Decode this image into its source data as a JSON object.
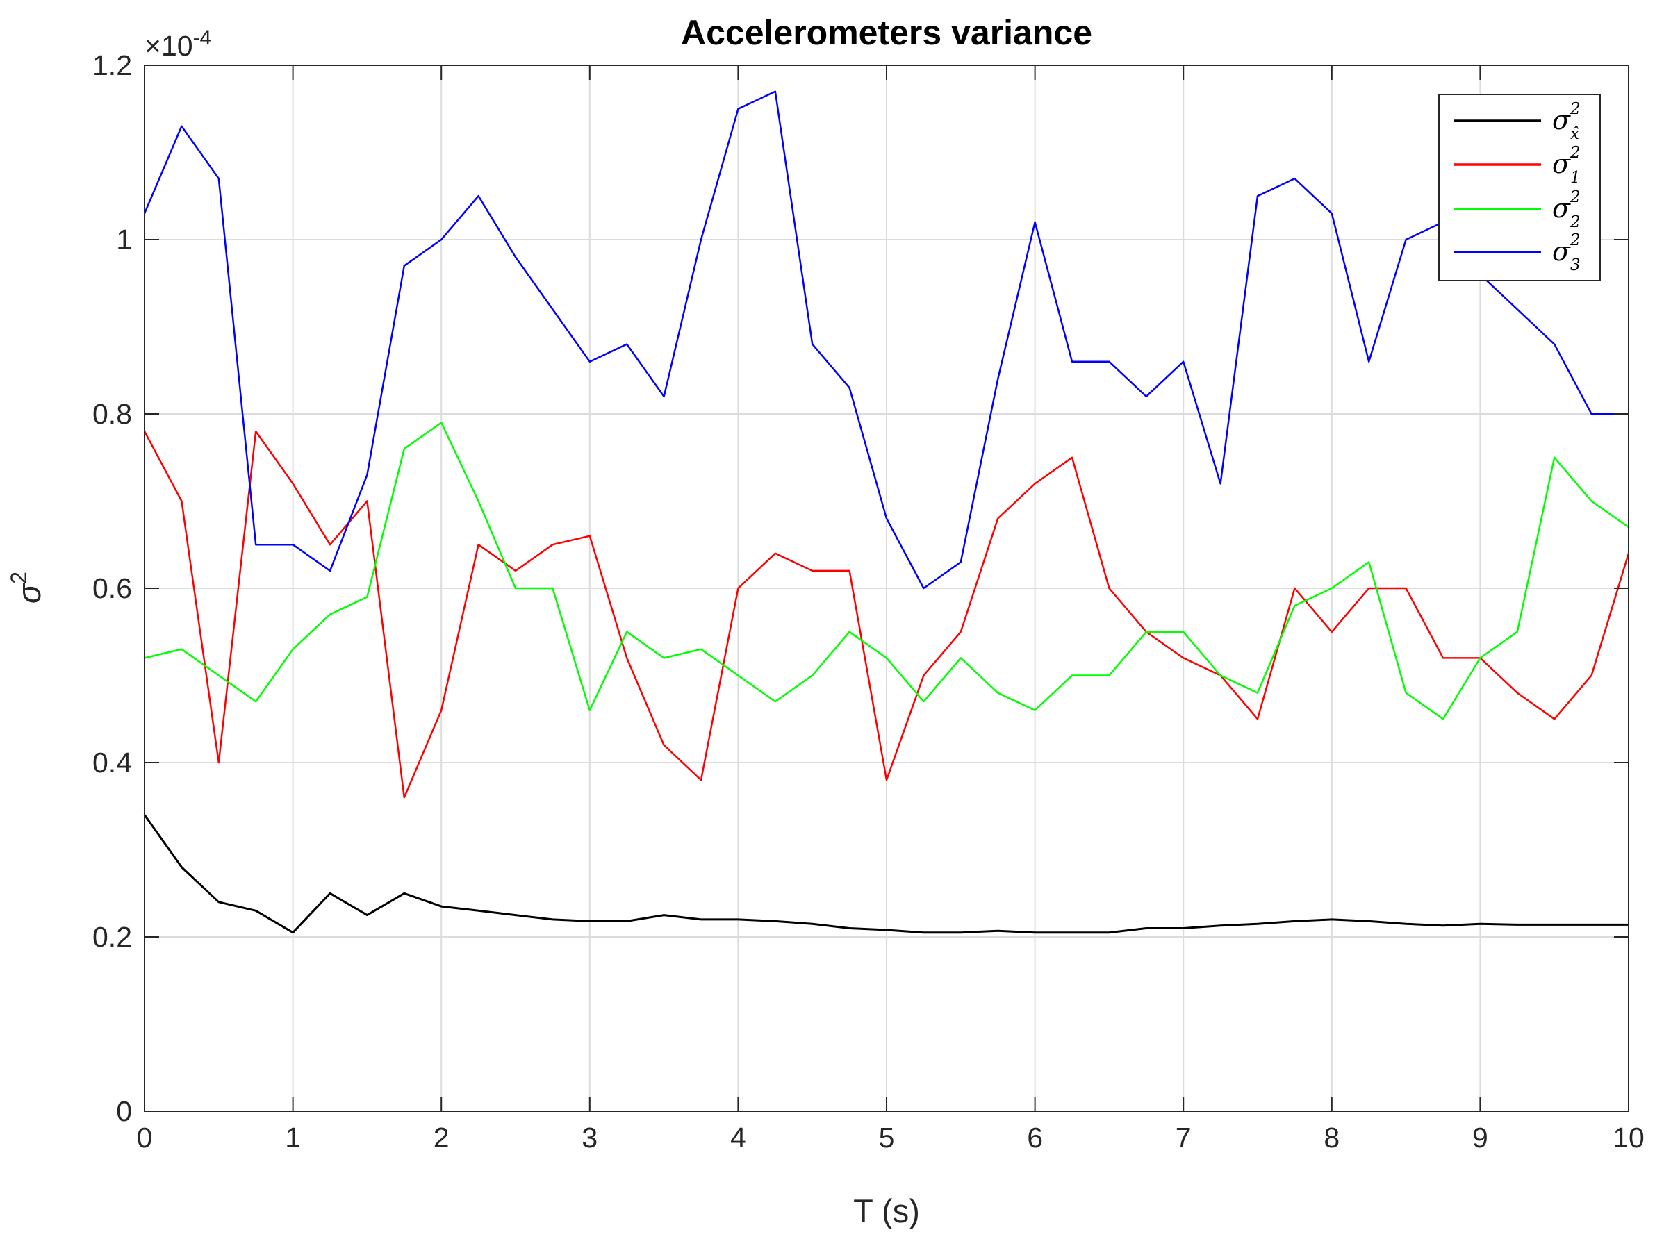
{
  "chart_data": {
    "type": "line",
    "title": "Accelerometers variance",
    "xlabel": "T (s)",
    "ylabel_symbol": "σ",
    "ylabel_superscript": "2",
    "y_exponent_prefix": "×10",
    "y_exponent": "-4",
    "xlim": [
      0,
      10
    ],
    "ylim": [
      0,
      1.2
    ],
    "xticks": [
      0,
      1,
      2,
      3,
      4,
      5,
      6,
      7,
      8,
      9,
      10
    ],
    "xtick_labels": [
      "0",
      "1",
      "2",
      "3",
      "4",
      "5",
      "6",
      "7",
      "8",
      "9",
      "10"
    ],
    "yticks": [
      0,
      0.2,
      0.4,
      0.6,
      0.8,
      1.0,
      1.2
    ],
    "ytick_labels": [
      "0",
      "0.2",
      "0.4",
      "0.6",
      "0.8",
      "1",
      "1.2"
    ],
    "grid": true,
    "legend_position": "top-right",
    "x": [
      0,
      0.25,
      0.5,
      0.75,
      1.0,
      1.25,
      1.5,
      1.75,
      2.0,
      2.25,
      2.5,
      2.75,
      3.0,
      3.25,
      3.5,
      3.75,
      4.0,
      4.25,
      4.5,
      4.75,
      5.0,
      5.25,
      5.5,
      5.75,
      6.0,
      6.25,
      6.5,
      6.75,
      7.0,
      7.25,
      7.5,
      7.75,
      8.0,
      8.25,
      8.5,
      8.75,
      9.0,
      9.25,
      9.5,
      9.75,
      10.0
    ],
    "series": [
      {
        "name_base": "σ",
        "name_sup": "2",
        "name_sub": "x̂",
        "color": "#000000",
        "values": [
          0.34,
          0.28,
          0.24,
          0.23,
          0.205,
          0.25,
          0.225,
          0.25,
          0.235,
          0.23,
          0.225,
          0.22,
          0.218,
          0.218,
          0.225,
          0.22,
          0.22,
          0.218,
          0.215,
          0.21,
          0.208,
          0.205,
          0.205,
          0.207,
          0.205,
          0.205,
          0.205,
          0.21,
          0.21,
          0.213,
          0.215,
          0.218,
          0.22,
          0.218,
          0.215,
          0.213,
          0.215,
          0.214,
          0.214,
          0.214,
          0.214
        ]
      },
      {
        "name_base": "σ",
        "name_sup": "2",
        "name_sub": "1",
        "color": "#ff0000",
        "values": [
          0.78,
          0.7,
          0.4,
          0.78,
          0.72,
          0.65,
          0.7,
          0.36,
          0.46,
          0.65,
          0.62,
          0.65,
          0.66,
          0.52,
          0.42,
          0.38,
          0.6,
          0.64,
          0.62,
          0.62,
          0.38,
          0.5,
          0.55,
          0.68,
          0.72,
          0.75,
          0.6,
          0.55,
          0.52,
          0.5,
          0.45,
          0.6,
          0.55,
          0.6,
          0.6,
          0.52,
          0.52,
          0.48,
          0.45,
          0.5,
          0.64
        ]
      },
      {
        "name_base": "σ",
        "name_sup": "2",
        "name_sub": "2",
        "color": "#00ff00",
        "values": [
          0.52,
          0.53,
          0.5,
          0.47,
          0.53,
          0.57,
          0.59,
          0.76,
          0.79,
          0.7,
          0.6,
          0.6,
          0.46,
          0.55,
          0.52,
          0.53,
          0.5,
          0.47,
          0.5,
          0.55,
          0.52,
          0.47,
          0.52,
          0.48,
          0.46,
          0.5,
          0.5,
          0.55,
          0.55,
          0.5,
          0.48,
          0.58,
          0.6,
          0.63,
          0.48,
          0.45,
          0.52,
          0.55,
          0.75,
          0.7,
          0.67
        ]
      },
      {
        "name_base": "σ",
        "name_sup": "2",
        "name_sub": "3",
        "color": "#0000ff",
        "values": [
          1.03,
          1.13,
          1.07,
          0.65,
          0.65,
          0.62,
          0.73,
          0.97,
          1.0,
          1.05,
          0.98,
          0.92,
          0.86,
          0.88,
          0.82,
          1.0,
          1.15,
          1.17,
          0.88,
          0.83,
          0.68,
          0.6,
          0.63,
          0.84,
          1.02,
          0.86,
          0.86,
          0.82,
          0.86,
          0.72,
          1.05,
          1.07,
          1.03,
          0.86,
          1.0,
          1.02,
          0.96,
          0.92,
          0.88,
          0.8,
          0.8
        ]
      }
    ]
  }
}
